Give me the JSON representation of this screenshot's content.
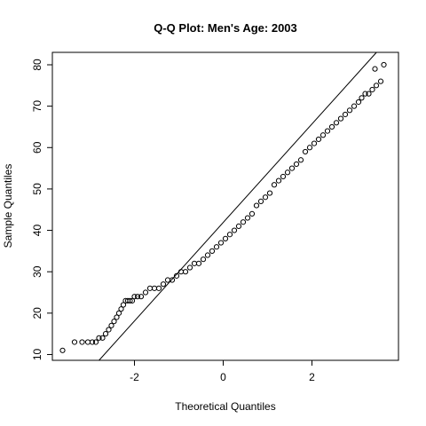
{
  "chart_data": {
    "type": "scatter",
    "title": "Q-Q Plot: Men's Age:  2003",
    "xlabel": "Theoretical Quantiles",
    "ylabel": "Sample Quantiles",
    "xlim": [
      -3.85,
      3.95
    ],
    "ylim": [
      8.6,
      83.0
    ],
    "x_ticks": [
      -2,
      0,
      2
    ],
    "y_ticks": [
      10,
      20,
      30,
      40,
      50,
      60,
      70,
      80
    ],
    "grid": false,
    "legend": "none",
    "point_style": "open-circle",
    "reference_line": {
      "slope": 11.9,
      "intercept": 41.9
    },
    "points": [
      [
        -3.62,
        11
      ],
      [
        -3.35,
        13
      ],
      [
        -3.18,
        13
      ],
      [
        -3.05,
        13
      ],
      [
        -2.95,
        13
      ],
      [
        -2.87,
        13
      ],
      [
        -2.8,
        14
      ],
      [
        -2.72,
        14
      ],
      [
        -2.65,
        15
      ],
      [
        -2.58,
        16
      ],
      [
        -2.52,
        17
      ],
      [
        -2.46,
        18
      ],
      [
        -2.4,
        19
      ],
      [
        -2.35,
        20
      ],
      [
        -2.3,
        21
      ],
      [
        -2.25,
        22
      ],
      [
        -2.2,
        23
      ],
      [
        -2.15,
        23
      ],
      [
        -2.1,
        23
      ],
      [
        -2.05,
        23
      ],
      [
        -2.0,
        24
      ],
      [
        -1.93,
        24
      ],
      [
        -1.85,
        24
      ],
      [
        -1.75,
        25
      ],
      [
        -1.65,
        26
      ],
      [
        -1.55,
        26
      ],
      [
        -1.45,
        26
      ],
      [
        -1.35,
        27
      ],
      [
        -1.25,
        28
      ],
      [
        -1.15,
        28
      ],
      [
        -1.05,
        29
      ],
      [
        -0.95,
        30
      ],
      [
        -0.85,
        30
      ],
      [
        -0.75,
        31
      ],
      [
        -0.65,
        32
      ],
      [
        -0.55,
        32
      ],
      [
        -0.45,
        33
      ],
      [
        -0.35,
        34
      ],
      [
        -0.25,
        35
      ],
      [
        -0.15,
        36
      ],
      [
        -0.05,
        37
      ],
      [
        0.05,
        38
      ],
      [
        0.15,
        39
      ],
      [
        0.25,
        40
      ],
      [
        0.35,
        41
      ],
      [
        0.45,
        42
      ],
      [
        0.55,
        43
      ],
      [
        0.65,
        44
      ],
      [
        0.75,
        46
      ],
      [
        0.85,
        47
      ],
      [
        0.95,
        48
      ],
      [
        1.05,
        49
      ],
      [
        1.15,
        51
      ],
      [
        1.25,
        52
      ],
      [
        1.35,
        53
      ],
      [
        1.45,
        54
      ],
      [
        1.55,
        55
      ],
      [
        1.65,
        56
      ],
      [
        1.75,
        57
      ],
      [
        1.85,
        59
      ],
      [
        1.95,
        60
      ],
      [
        2.05,
        61
      ],
      [
        2.15,
        62
      ],
      [
        2.25,
        63
      ],
      [
        2.35,
        64
      ],
      [
        2.45,
        65
      ],
      [
        2.55,
        66
      ],
      [
        2.65,
        67
      ],
      [
        2.75,
        68
      ],
      [
        2.85,
        69
      ],
      [
        2.95,
        70
      ],
      [
        3.05,
        71
      ],
      [
        3.12,
        72
      ],
      [
        3.2,
        73
      ],
      [
        3.28,
        73
      ],
      [
        3.36,
        74
      ],
      [
        3.45,
        75
      ],
      [
        3.55,
        76
      ],
      [
        3.42,
        79
      ],
      [
        3.62,
        80
      ]
    ]
  }
}
